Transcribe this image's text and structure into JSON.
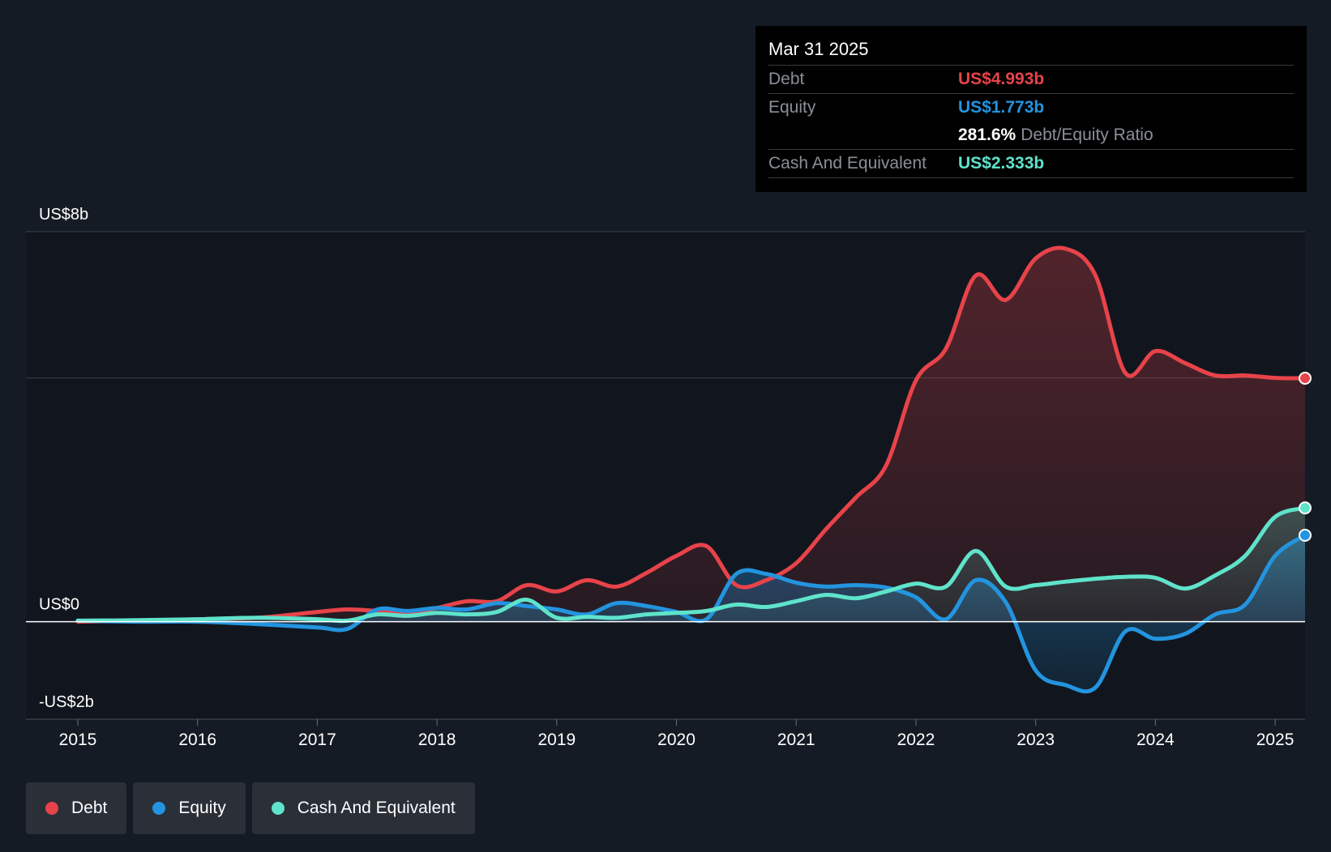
{
  "chart_data": {
    "type": "line",
    "title": "",
    "xlabel": "",
    "ylabel": "",
    "ylim": [
      -2,
      8
    ],
    "xlim": [
      2015.0,
      2025.25
    ],
    "y_ticks": [
      {
        "value": 8,
        "label": "US$8b"
      },
      {
        "value": 0,
        "label": "US$0"
      },
      {
        "value": -2,
        "label": "-US$2b"
      }
    ],
    "y_gridlines": [
      8,
      5
    ],
    "x_ticks": [
      {
        "value": 2015,
        "label": "2015"
      },
      {
        "value": 2016,
        "label": "2016"
      },
      {
        "value": 2017,
        "label": "2017"
      },
      {
        "value": 2018,
        "label": "2018"
      },
      {
        "value": 2019,
        "label": "2019"
      },
      {
        "value": 2020,
        "label": "2020"
      },
      {
        "value": 2021,
        "label": "2021"
      },
      {
        "value": 2022,
        "label": "2022"
      },
      {
        "value": 2023,
        "label": "2023"
      },
      {
        "value": 2024,
        "label": "2024"
      },
      {
        "value": 2025,
        "label": "2025"
      }
    ],
    "series": [
      {
        "name": "Debt",
        "color": "#e8434a",
        "points": [
          [
            2015.0,
            0.0
          ],
          [
            2015.5,
            0.02
          ],
          [
            2016.0,
            0.05
          ],
          [
            2016.5,
            0.08
          ],
          [
            2017.0,
            0.2
          ],
          [
            2017.25,
            0.25
          ],
          [
            2017.5,
            0.22
          ],
          [
            2017.75,
            0.18
          ],
          [
            2018.0,
            0.28
          ],
          [
            2018.25,
            0.42
          ],
          [
            2018.5,
            0.42
          ],
          [
            2018.75,
            0.75
          ],
          [
            2019.0,
            0.62
          ],
          [
            2019.25,
            0.85
          ],
          [
            2019.5,
            0.72
          ],
          [
            2019.75,
            1.0
          ],
          [
            2020.0,
            1.35
          ],
          [
            2020.25,
            1.55
          ],
          [
            2020.5,
            0.75
          ],
          [
            2020.75,
            0.85
          ],
          [
            2021.0,
            1.2
          ],
          [
            2021.25,
            1.9
          ],
          [
            2021.5,
            2.55
          ],
          [
            2021.75,
            3.2
          ],
          [
            2022.0,
            4.95
          ],
          [
            2022.25,
            5.6
          ],
          [
            2022.5,
            7.1
          ],
          [
            2022.75,
            6.6
          ],
          [
            2023.0,
            7.45
          ],
          [
            2023.25,
            7.65
          ],
          [
            2023.5,
            7.1
          ],
          [
            2023.75,
            5.1
          ],
          [
            2024.0,
            5.55
          ],
          [
            2024.25,
            5.3
          ],
          [
            2024.5,
            5.05
          ],
          [
            2024.75,
            5.05
          ],
          [
            2025.0,
            5.0
          ],
          [
            2025.25,
            4.993
          ]
        ]
      },
      {
        "name": "Equity",
        "color": "#2394df",
        "points": [
          [
            2015.0,
            0.02
          ],
          [
            2015.5,
            0.0
          ],
          [
            2016.0,
            0.0
          ],
          [
            2016.5,
            -0.05
          ],
          [
            2017.0,
            -0.12
          ],
          [
            2017.25,
            -0.15
          ],
          [
            2017.5,
            0.25
          ],
          [
            2017.75,
            0.22
          ],
          [
            2018.0,
            0.28
          ],
          [
            2018.25,
            0.25
          ],
          [
            2018.5,
            0.38
          ],
          [
            2018.75,
            0.32
          ],
          [
            2019.0,
            0.25
          ],
          [
            2019.25,
            0.15
          ],
          [
            2019.5,
            0.38
          ],
          [
            2019.75,
            0.32
          ],
          [
            2020.0,
            0.2
          ],
          [
            2020.25,
            0.05
          ],
          [
            2020.5,
            0.98
          ],
          [
            2020.75,
            0.98
          ],
          [
            2021.0,
            0.8
          ],
          [
            2021.25,
            0.72
          ],
          [
            2021.5,
            0.75
          ],
          [
            2021.75,
            0.7
          ],
          [
            2022.0,
            0.5
          ],
          [
            2022.25,
            0.05
          ],
          [
            2022.5,
            0.85
          ],
          [
            2022.75,
            0.4
          ],
          [
            2023.0,
            -1.0
          ],
          [
            2023.25,
            -1.3
          ],
          [
            2023.5,
            -1.35
          ],
          [
            2023.75,
            -0.2
          ],
          [
            2024.0,
            -0.35
          ],
          [
            2024.25,
            -0.25
          ],
          [
            2024.5,
            0.15
          ],
          [
            2024.75,
            0.35
          ],
          [
            2025.0,
            1.35
          ],
          [
            2025.25,
            1.773
          ]
        ]
      },
      {
        "name": "Cash And Equivalent",
        "color": "#5fe3cb",
        "points": [
          [
            2015.0,
            0.02
          ],
          [
            2015.5,
            0.03
          ],
          [
            2016.0,
            0.05
          ],
          [
            2016.5,
            0.08
          ],
          [
            2017.0,
            0.05
          ],
          [
            2017.25,
            0.02
          ],
          [
            2017.5,
            0.15
          ],
          [
            2017.75,
            0.12
          ],
          [
            2018.0,
            0.18
          ],
          [
            2018.25,
            0.15
          ],
          [
            2018.5,
            0.2
          ],
          [
            2018.75,
            0.45
          ],
          [
            2019.0,
            0.08
          ],
          [
            2019.25,
            0.1
          ],
          [
            2019.5,
            0.08
          ],
          [
            2019.75,
            0.15
          ],
          [
            2020.0,
            0.18
          ],
          [
            2020.25,
            0.22
          ],
          [
            2020.5,
            0.35
          ],
          [
            2020.75,
            0.3
          ],
          [
            2021.0,
            0.42
          ],
          [
            2021.25,
            0.55
          ],
          [
            2021.5,
            0.48
          ],
          [
            2021.75,
            0.62
          ],
          [
            2022.0,
            0.78
          ],
          [
            2022.25,
            0.72
          ],
          [
            2022.5,
            1.45
          ],
          [
            2022.75,
            0.72
          ],
          [
            2023.0,
            0.75
          ],
          [
            2023.25,
            0.82
          ],
          [
            2023.5,
            0.88
          ],
          [
            2023.75,
            0.92
          ],
          [
            2024.0,
            0.9
          ],
          [
            2024.25,
            0.68
          ],
          [
            2024.5,
            0.95
          ],
          [
            2024.75,
            1.35
          ],
          [
            2025.0,
            2.15
          ],
          [
            2025.25,
            2.333
          ]
        ]
      }
    ],
    "tooltip": {
      "date": "Mar 31 2025",
      "debt_label": "Debt",
      "debt_value": "US$4.993b",
      "equity_label": "Equity",
      "equity_value": "US$1.773b",
      "ratio_value": "281.6%",
      "ratio_label": "Debt/Equity Ratio",
      "cash_label": "Cash And Equivalent",
      "cash_value": "US$2.333b"
    },
    "legend": [
      {
        "name": "Debt",
        "color": "#e8434a"
      },
      {
        "name": "Equity",
        "color": "#2394df"
      },
      {
        "name": "Cash And Equivalent",
        "color": "#5fe3cb"
      }
    ],
    "legend_position": "bottom-left"
  }
}
